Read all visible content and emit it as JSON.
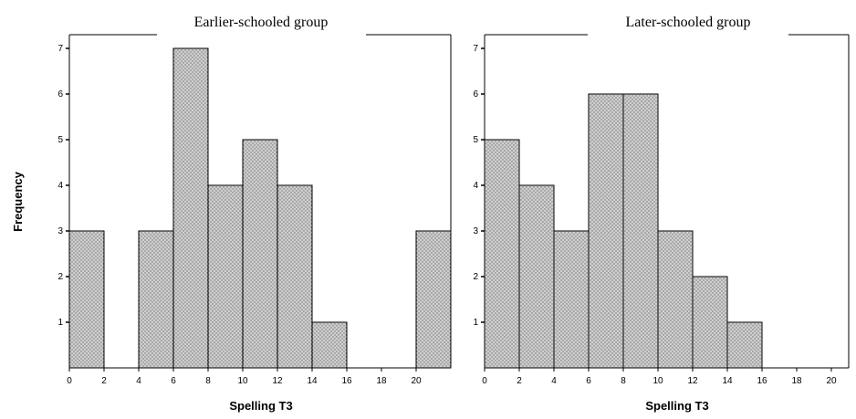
{
  "chart_data": [
    {
      "type": "bar",
      "title": "Earlier-schooled group",
      "xlabel": "Spelling T3",
      "ylabel": "Frequency",
      "bin_width": 2,
      "x_ticks": [
        0,
        2,
        4,
        6,
        8,
        10,
        12,
        14,
        16,
        18,
        20
      ],
      "y_ticks": [
        1,
        2,
        3,
        4,
        5,
        6,
        7
      ],
      "xlim": [
        0,
        22
      ],
      "ylim": [
        0,
        7
      ],
      "bins": [
        {
          "start": 0,
          "end": 2,
          "count": 3
        },
        {
          "start": 4,
          "end": 6,
          "count": 3
        },
        {
          "start": 6,
          "end": 8,
          "count": 7
        },
        {
          "start": 8,
          "end": 10,
          "count": 4
        },
        {
          "start": 10,
          "end": 12,
          "count": 5
        },
        {
          "start": 12,
          "end": 14,
          "count": 4
        },
        {
          "start": 14,
          "end": 16,
          "count": 1
        },
        {
          "start": 20,
          "end": 22,
          "count": 3
        }
      ]
    },
    {
      "type": "bar",
      "title": "Later-schooled group",
      "xlabel": "Spelling T3",
      "ylabel": "Frequency",
      "bin_width": 2,
      "x_ticks": [
        0,
        2,
        4,
        6,
        8,
        10,
        12,
        14,
        16,
        18,
        20
      ],
      "y_ticks": [
        1,
        2,
        3,
        4,
        5,
        6,
        7
      ],
      "xlim": [
        0,
        22
      ],
      "ylim": [
        0,
        7
      ],
      "bins": [
        {
          "start": 0,
          "end": 2,
          "count": 5
        },
        {
          "start": 2,
          "end": 4,
          "count": 4
        },
        {
          "start": 4,
          "end": 6,
          "count": 3
        },
        {
          "start": 6,
          "end": 8,
          "count": 6
        },
        {
          "start": 8,
          "end": 10,
          "count": 6
        },
        {
          "start": 10,
          "end": 12,
          "count": 3
        },
        {
          "start": 12,
          "end": 14,
          "count": 2
        },
        {
          "start": 14,
          "end": 16,
          "count": 1
        }
      ]
    }
  ],
  "style": {
    "bar_fill": "#c9c9c9",
    "bar_pattern_dot": "#7a7a7a",
    "frame_color": "#000000"
  }
}
